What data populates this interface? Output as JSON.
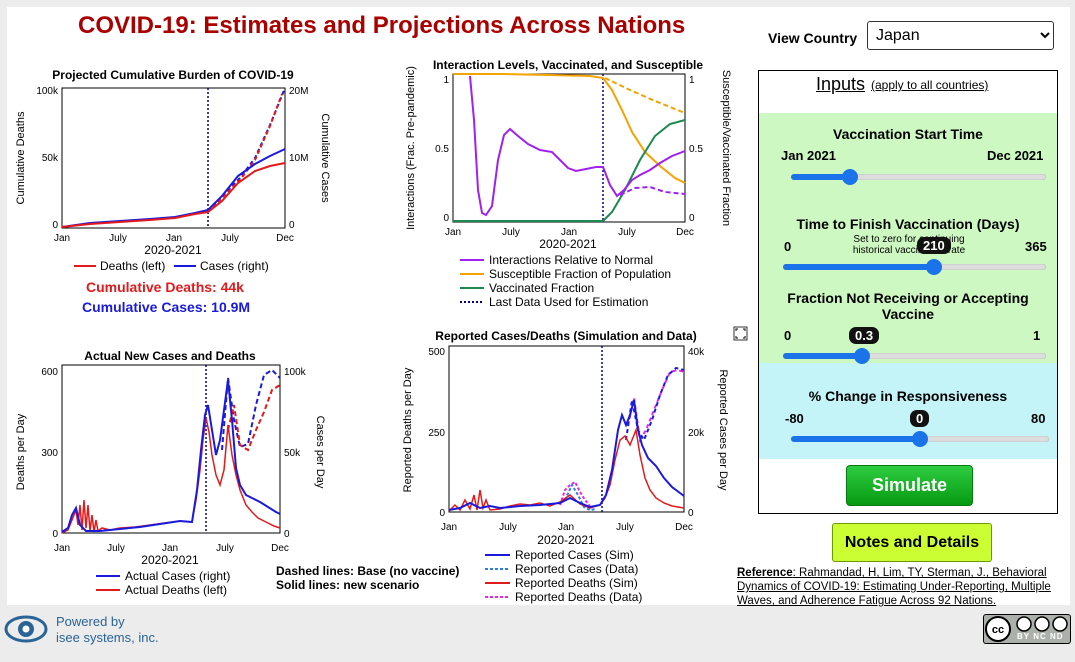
{
  "title": "COVID-19: Estimates and Projections Across Nations",
  "view_country": {
    "label": "View Country",
    "selected": "Japan"
  },
  "inputs": {
    "heading": "Inputs",
    "note": "(apply to all countries)",
    "vaccination_start": {
      "label": "Vaccination Start Time",
      "min_label": "Jan 2021",
      "max_label": "Dec 2021",
      "fraction": 0.23
    },
    "time_to_finish": {
      "label": "Time to Finish Vaccination (Days)",
      "sublabel": "Set to zero for continuing historical vaccination rate",
      "min_label": "0",
      "max_label": "365",
      "value": "210",
      "fraction": 0.575
    },
    "fraction_not": {
      "label": "Fraction Not Receiving or Accepting Vaccine",
      "min_label": "0",
      "max_label": "1",
      "value": "0.3",
      "fraction": 0.3
    },
    "responsiveness": {
      "label": "% Change in Responsiveness",
      "min_label": "-80",
      "max_label": "80",
      "value": "0",
      "fraction": 0.5
    },
    "simulate_label": "Simulate"
  },
  "notes_label": "Notes and Details",
  "reference": {
    "prefix": "Reference",
    "text": ": Rahmandad, H, Lim, TY, Sterman, J., Behavioral Dynamics of COVID-19: Estimating Under-Reporting, Multiple Waves, and Adherence Fatigue Across 92 Nations."
  },
  "footer": {
    "powered_line1": "Powered by",
    "powered_line2": "isee systems, inc.",
    "license_text": "BY  NC  ND"
  },
  "summary": {
    "deaths_label": "Cumulative Deaths: 44k",
    "cases_label": "Cumulative Cases: 10.9M"
  },
  "dashed_note": {
    "line1": "Dashed lines: Base (no vaccine)",
    "line2": "Solid lines: new scenario"
  },
  "colors": {
    "red": "#e31a1c",
    "blue": "#1a1adc",
    "purple": "#a020f0",
    "orange": "#f5a300",
    "green": "#1a8a50",
    "navy": "#000080",
    "magenta": "#ee22ee",
    "title": "#aa0000"
  },
  "chart_data": [
    {
      "type": "line",
      "title": "Projected Cumulative Burden of COVID-19",
      "xlabel": "2020-2021",
      "ylabel": "Cumulative Deaths",
      "ylabel_right": "Cumulative Cases",
      "x_ticks": [
        "Jan",
        "July",
        "Jan",
        "July",
        "Dec"
      ],
      "y_ticks_left": [
        "100k",
        "50k",
        "0"
      ],
      "y_ticks_right": [
        "20M",
        "10M",
        "0"
      ],
      "legend": [
        "Deaths (left)",
        "Cases (right)"
      ]
    },
    {
      "type": "line",
      "title": "Interaction Levels, Vaccinated, and Susceptible",
      "xlabel": "2020-2021",
      "ylabel": "Interactions (Frac. Pre-pandemic)",
      "ylabel_right": "Susceptible/Vaccinated Fraction",
      "x_ticks": [
        "Jan",
        "July",
        "Jan",
        "July",
        "Dec"
      ],
      "y_ticks_left": [
        "1",
        "0.5",
        "0"
      ],
      "y_ticks_right": [
        "1",
        "0.5",
        "0"
      ],
      "legend": [
        "Interactions Relative to Normal",
        "Susceptible Fraction of Population",
        "Vaccinated Fraction",
        "Last Data Used for Estimation"
      ]
    },
    {
      "type": "line",
      "title": "Actual New Cases and Deaths",
      "xlabel": "2020-2021",
      "ylabel": "Deaths per Day",
      "ylabel_right": "Cases per Day",
      "x_ticks": [
        "Jan",
        "July",
        "Jan",
        "July",
        "Dec"
      ],
      "y_ticks_left": [
        "600",
        "300",
        "0"
      ],
      "y_ticks_right": [
        "100k",
        "50k",
        "0"
      ],
      "legend": [
        "Actual Cases (right)",
        "Actual Deaths (left)"
      ]
    },
    {
      "type": "line",
      "title": "Reported Cases/Deaths (Simulation and Data)",
      "xlabel": "2020-2021",
      "ylabel": "Reported Deaths per Day",
      "ylabel_right": "Reported Cases per Day",
      "x_ticks": [
        "Jan",
        "July",
        "Jan",
        "July",
        "Dec"
      ],
      "y_ticks_left": [
        "500",
        "250",
        "0"
      ],
      "y_ticks_right": [
        "40k",
        "20k",
        "0"
      ],
      "legend": [
        "Reported Cases (Sim)",
        "Reported Cases (Data)",
        "Reported Deaths (Sim)",
        "Reported Deaths (Data)"
      ]
    }
  ]
}
